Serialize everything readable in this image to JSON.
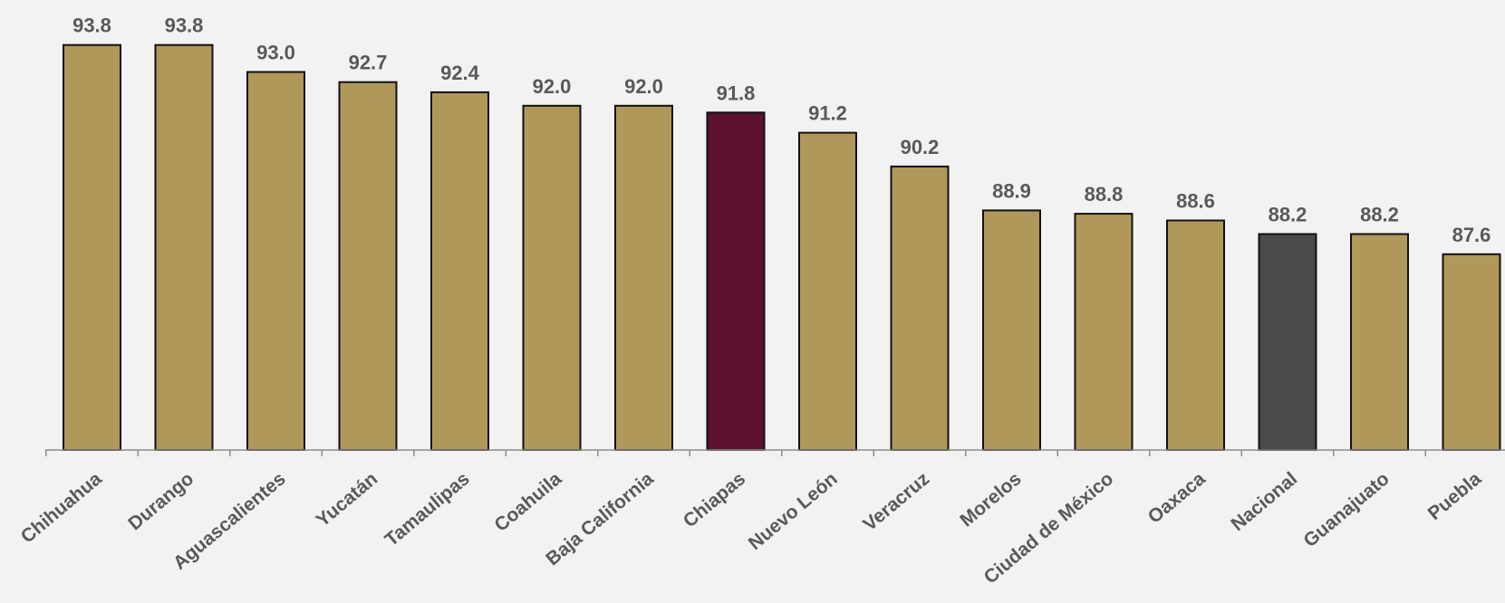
{
  "chart_data": {
    "type": "bar",
    "categories": [
      "Chihuahua",
      "Durango",
      "Aguascalientes",
      "Yucatán",
      "Tamaulipas",
      "Coahuila",
      "Baja California",
      "Chiapas",
      "Nuevo León",
      "Veracruz",
      "Morelos",
      "Ciudad de México",
      "Oaxaca",
      "Nacional",
      "Guanajuato",
      "Puebla"
    ],
    "values": [
      93.8,
      93.8,
      93.0,
      92.7,
      92.4,
      92.0,
      92.0,
      91.8,
      91.2,
      90.2,
      88.9,
      88.8,
      88.6,
      88.2,
      88.2,
      87.6
    ],
    "labels": [
      "93.8",
      "93.8",
      "93.0",
      "92.7",
      "92.4",
      "92.0",
      "92.0",
      "91.8",
      "91.2",
      "90.2",
      "88.9",
      "88.8",
      "88.6",
      "88.2",
      "88.2",
      "87.6"
    ],
    "ylim": [
      81.8,
      93.9
    ],
    "colors": {
      "default": "#b0985a",
      "Chiapas": "#5e1130",
      "Nacional": "#4a4a4a",
      "outline": "#111111",
      "axis": "#8c8c8c",
      "text": "#595959"
    },
    "grid": false,
    "legend": "none"
  }
}
